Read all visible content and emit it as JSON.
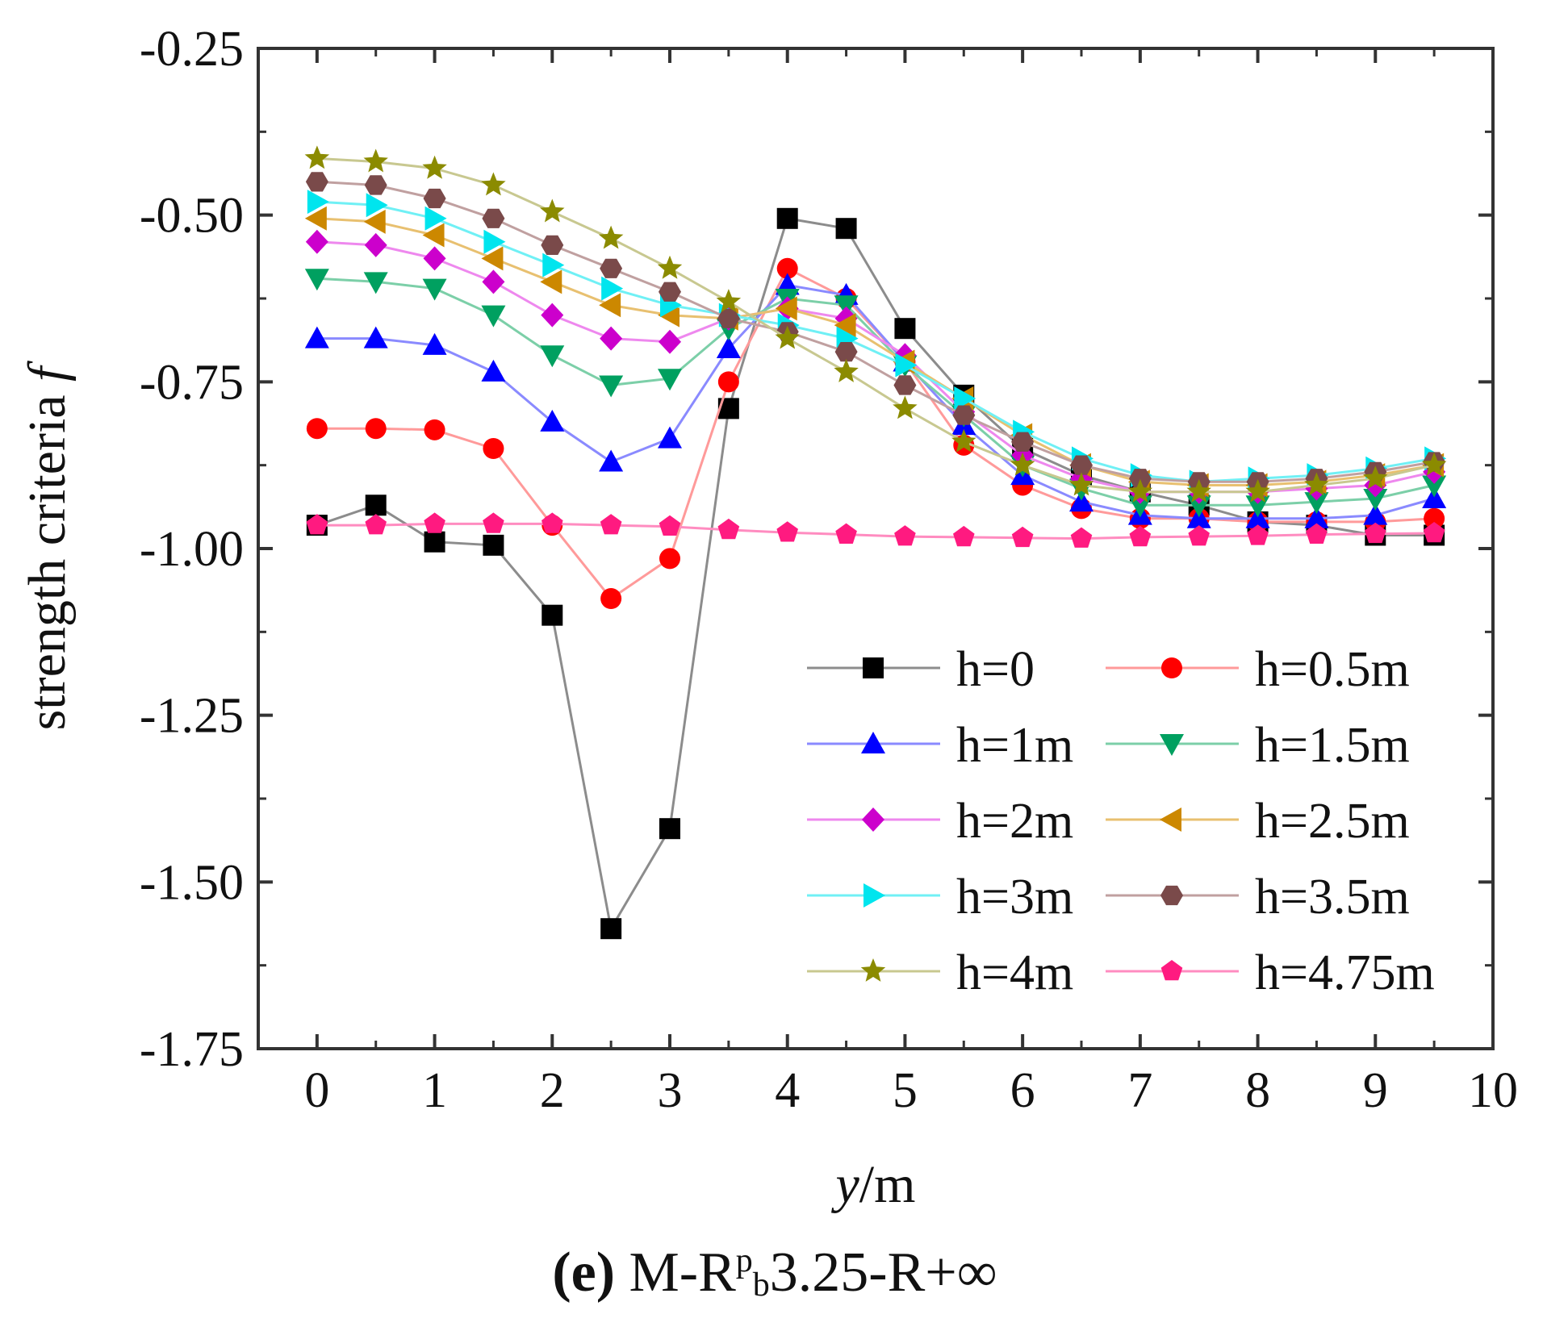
{
  "chart_data": {
    "type": "line",
    "title": "",
    "xlabel": {
      "var": "y",
      "unit": "/m"
    },
    "ylabel": {
      "text": "strength criteria",
      "var": "f"
    },
    "xlim": [
      -0.5,
      10
    ],
    "ylim": [
      -1.75,
      -0.25
    ],
    "xticks": [
      0,
      1,
      2,
      3,
      4,
      5,
      6,
      7,
      8,
      9,
      10
    ],
    "yticks": [
      -0.25,
      -0.5,
      -0.75,
      -1.0,
      -1.25,
      -1.5,
      -1.75
    ],
    "ytick_labels": [
      "-0.25",
      "-0.50",
      "-0.75",
      "-1.00",
      "-1.25",
      "-1.50",
      "-1.75"
    ],
    "legend_position": "lower-right",
    "x": [
      0,
      0.5,
      1,
      1.5,
      2,
      2.5,
      3,
      3.5,
      4,
      4.5,
      5,
      5.5,
      6,
      6.5,
      7,
      7.5,
      8,
      8.5,
      9,
      9.5
    ],
    "series": [
      {
        "name": "h=0",
        "color": "#000000",
        "line_color": "#8c8c8c",
        "marker": "square",
        "values": [
          -0.965,
          -0.935,
          -0.99,
          -0.995,
          -1.1,
          -1.57,
          -1.42,
          -0.79,
          -0.505,
          -0.52,
          -0.67,
          -0.77,
          -0.85,
          -0.89,
          -0.915,
          -0.935,
          -0.96,
          -0.965,
          -0.98,
          -0.98
        ]
      },
      {
        "name": "h=0.5m",
        "color": "#ff0000",
        "line_color": "#ff9a9a",
        "marker": "circle",
        "values": [
          -0.82,
          -0.82,
          -0.822,
          -0.85,
          -0.965,
          -1.075,
          -1.015,
          -0.75,
          -0.58,
          -0.625,
          -0.72,
          -0.845,
          -0.905,
          -0.94,
          -0.955,
          -0.955,
          -0.96,
          -0.96,
          -0.96,
          -0.955
        ]
      },
      {
        "name": "h=1m",
        "color": "#0000ff",
        "line_color": "#8a8aff",
        "marker": "triangle-up",
        "values": [
          -0.685,
          -0.685,
          -0.695,
          -0.735,
          -0.81,
          -0.87,
          -0.835,
          -0.7,
          -0.605,
          -0.62,
          -0.72,
          -0.815,
          -0.89,
          -0.93,
          -0.95,
          -0.955,
          -0.955,
          -0.955,
          -0.95,
          -0.925
        ]
      },
      {
        "name": "h=1.5m",
        "color": "#00a060",
        "line_color": "#7ccfa8",
        "marker": "triangle-down",
        "values": [
          -0.595,
          -0.6,
          -0.61,
          -0.65,
          -0.71,
          -0.755,
          -0.745,
          -0.67,
          -0.625,
          -0.635,
          -0.725,
          -0.8,
          -0.875,
          -0.91,
          -0.935,
          -0.935,
          -0.935,
          -0.93,
          -0.925,
          -0.905
        ]
      },
      {
        "name": "h=2m",
        "color": "#cc00cc",
        "line_color": "#ee88ee",
        "marker": "diamond",
        "values": [
          -0.54,
          -0.545,
          -0.565,
          -0.6,
          -0.65,
          -0.685,
          -0.69,
          -0.655,
          -0.64,
          -0.655,
          -0.71,
          -0.795,
          -0.86,
          -0.895,
          -0.915,
          -0.915,
          -0.915,
          -0.91,
          -0.905,
          -0.885
        ]
      },
      {
        "name": "h=2.5m",
        "color": "#cc8800",
        "line_color": "#e8c070",
        "marker": "triangle-left",
        "values": [
          -0.505,
          -0.51,
          -0.53,
          -0.565,
          -0.6,
          -0.635,
          -0.65,
          -0.655,
          -0.64,
          -0.665,
          -0.72,
          -0.775,
          -0.83,
          -0.875,
          -0.9,
          -0.905,
          -0.905,
          -0.9,
          -0.89,
          -0.875
        ]
      },
      {
        "name": "h=3m",
        "color": "#00e5ee",
        "line_color": "#70f0f5",
        "marker": "triangle-right",
        "values": [
          -0.48,
          -0.485,
          -0.505,
          -0.54,
          -0.575,
          -0.61,
          -0.635,
          -0.65,
          -0.665,
          -0.685,
          -0.725,
          -0.775,
          -0.825,
          -0.865,
          -0.89,
          -0.9,
          -0.895,
          -0.89,
          -0.88,
          -0.865
        ]
      },
      {
        "name": "h=3.5m",
        "color": "#7a4a4a",
        "line_color": "#c0a0a0",
        "marker": "hexagon",
        "values": [
          -0.45,
          -0.455,
          -0.475,
          -0.505,
          -0.545,
          -0.58,
          -0.615,
          -0.655,
          -0.675,
          -0.705,
          -0.755,
          -0.8,
          -0.84,
          -0.875,
          -0.895,
          -0.9,
          -0.9,
          -0.895,
          -0.885,
          -0.87
        ]
      },
      {
        "name": "h=4m",
        "color": "#8b8b00",
        "line_color": "#c8c890",
        "marker": "star",
        "values": [
          -0.415,
          -0.42,
          -0.43,
          -0.455,
          -0.495,
          -0.535,
          -0.58,
          -0.63,
          -0.685,
          -0.735,
          -0.79,
          -0.84,
          -0.875,
          -0.905,
          -0.915,
          -0.915,
          -0.915,
          -0.905,
          -0.895,
          -0.875
        ]
      },
      {
        "name": "h=4.75m",
        "color": "#ff1a80",
        "line_color": "#ff8cc0",
        "marker": "pentagon",
        "values": [
          -0.965,
          -0.965,
          -0.963,
          -0.963,
          -0.963,
          -0.965,
          -0.967,
          -0.972,
          -0.976,
          -0.979,
          -0.982,
          -0.983,
          -0.984,
          -0.985,
          -0.983,
          -0.982,
          -0.981,
          -0.979,
          -0.978,
          -0.977
        ]
      }
    ]
  },
  "caption": {
    "label": "(e)",
    "prefix": "M-R",
    "sup": "p",
    "sub": "b",
    "suffix": "3.25-R+∞"
  }
}
